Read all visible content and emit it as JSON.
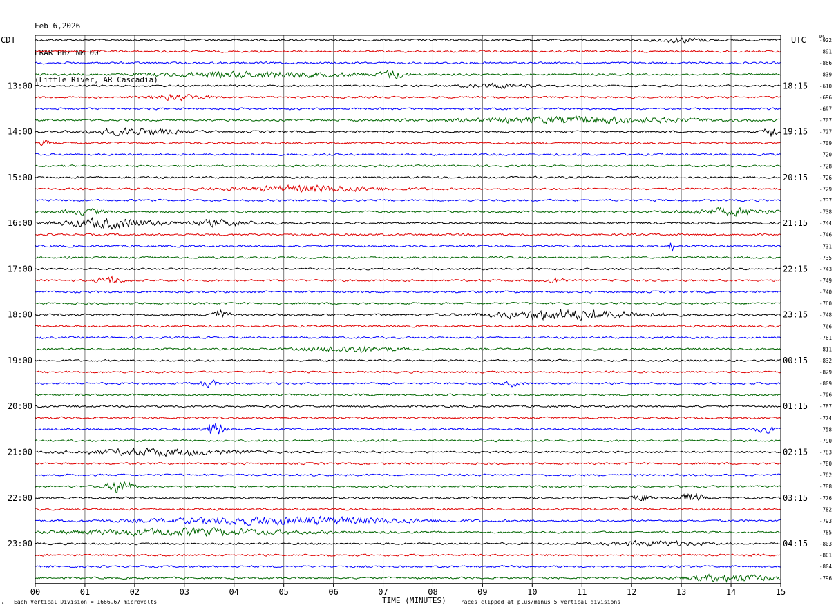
{
  "header": {
    "date": "Feb 6,2026",
    "station": "LRAR HHZ NM 00",
    "location": "(Little River, AR Cascadia)"
  },
  "left_tz": "CDT",
  "right_tz": "UTC",
  "dc_label": "DC",
  "footer": {
    "scale": "Each Vertical Division = 1666.67 microvolts",
    "clip": "Traces clipped at plus/minus 5 vertical divisions",
    "mark": "x"
  },
  "chart_data": {
    "type": "line",
    "title": "",
    "xlabel": "TIME (MINUTES)",
    "ylabel": "",
    "xlim": [
      0,
      15
    ],
    "x_ticks": [
      "00",
      "01",
      "02",
      "03",
      "04",
      "05",
      "06",
      "07",
      "08",
      "09",
      "10",
      "11",
      "12",
      "13",
      "14",
      "15"
    ],
    "grid": true,
    "trace_colors": [
      "#000000",
      "#e00000",
      "#0000ff",
      "#006600"
    ],
    "trace_count": 48,
    "left_hour_labels": [
      "13:00",
      "14:00",
      "15:00",
      "16:00",
      "17:00",
      "18:00",
      "19:00",
      "20:00",
      "21:00",
      "22:00",
      "23:00"
    ],
    "right_hour_labels": [
      "18:15",
      "19:15",
      "20:15",
      "21:15",
      "22:15",
      "23:15",
      "00:15",
      "01:15",
      "02:15",
      "03:15",
      "04:15"
    ],
    "dc_offsets": [
      "-922",
      "-891",
      "-866",
      "-839",
      "-610",
      "-696",
      "-697",
      "-707",
      "-727",
      "-709",
      "-720",
      "-728",
      "-726",
      "-729",
      "-737",
      "-738",
      "-744",
      "-746",
      "-731",
      "-735",
      "-743",
      "-749",
      "-740",
      "-760",
      "-748",
      "-766",
      "-761",
      "-811",
      "-832",
      "-829",
      "-809",
      "-796",
      "-787",
      "-774",
      "-758",
      "-790",
      "-783",
      "-780",
      "-782",
      "-788",
      "-776",
      "-782",
      "-793",
      "-785",
      "-803",
      "-801",
      "-804",
      "-796"
    ],
    "events": [
      {
        "trace": 0,
        "minute": 13.0,
        "width": 0.8,
        "amp": 1.4
      },
      {
        "trace": 3,
        "minute": 4.5,
        "width": 3.5,
        "amp": 1.6
      },
      {
        "trace": 3,
        "minute": 7.2,
        "width": 0.4,
        "amp": 2.5
      },
      {
        "trace": 4,
        "minute": 9.3,
        "width": 1.0,
        "amp": 1.3
      },
      {
        "trace": 5,
        "minute": 2.9,
        "width": 1.0,
        "amp": 1.5
      },
      {
        "trace": 7,
        "minute": 11.0,
        "width": 4.0,
        "amp": 1.8
      },
      {
        "trace": 8,
        "minute": 2.0,
        "width": 1.5,
        "amp": 2.0
      },
      {
        "trace": 8,
        "minute": 14.8,
        "width": 0.2,
        "amp": 4.0
      },
      {
        "trace": 9,
        "minute": 0.2,
        "width": 0.2,
        "amp": 1.5
      },
      {
        "trace": 13,
        "minute": 5.5,
        "width": 2.5,
        "amp": 1.8
      },
      {
        "trace": 15,
        "minute": 14.0,
        "width": 1.5,
        "amp": 2.0
      },
      {
        "trace": 15,
        "minute": 1.0,
        "width": 0.8,
        "amp": 1.5
      },
      {
        "trace": 16,
        "minute": 1.5,
        "width": 1.6,
        "amp": 3.0
      },
      {
        "trace": 16,
        "minute": 3.7,
        "width": 1.2,
        "amp": 1.8
      },
      {
        "trace": 18,
        "minute": 12.8,
        "width": 0.1,
        "amp": 3.0
      },
      {
        "trace": 21,
        "minute": 1.5,
        "width": 0.4,
        "amp": 2.5
      },
      {
        "trace": 21,
        "minute": 10.5,
        "width": 0.3,
        "amp": 1.8
      },
      {
        "trace": 24,
        "minute": 3.7,
        "width": 0.3,
        "amp": 3.0
      },
      {
        "trace": 24,
        "minute": 10.7,
        "width": 2.5,
        "amp": 3.2
      },
      {
        "trace": 27,
        "minute": 6.4,
        "width": 1.5,
        "amp": 1.7
      },
      {
        "trace": 30,
        "minute": 3.5,
        "width": 0.3,
        "amp": 2.0
      },
      {
        "trace": 30,
        "minute": 9.6,
        "width": 0.3,
        "amp": 1.5
      },
      {
        "trace": 34,
        "minute": 3.6,
        "width": 0.3,
        "amp": 5.0
      },
      {
        "trace": 34,
        "minute": 14.7,
        "width": 0.4,
        "amp": 1.8
      },
      {
        "trace": 36,
        "minute": 2.5,
        "width": 2.5,
        "amp": 2.0
      },
      {
        "trace": 39,
        "minute": 1.7,
        "width": 0.4,
        "amp": 4.5
      },
      {
        "trace": 40,
        "minute": 12.2,
        "width": 0.3,
        "amp": 2.0
      },
      {
        "trace": 40,
        "minute": 13.2,
        "width": 0.4,
        "amp": 2.8
      },
      {
        "trace": 42,
        "minute": 5.0,
        "width": 4.5,
        "amp": 2.2
      },
      {
        "trace": 43,
        "minute": 3.0,
        "width": 4.0,
        "amp": 2.0
      },
      {
        "trace": 44,
        "minute": 12.5,
        "width": 1.5,
        "amp": 1.4
      },
      {
        "trace": 47,
        "minute": 14.0,
        "width": 1.6,
        "amp": 2.0
      }
    ]
  }
}
